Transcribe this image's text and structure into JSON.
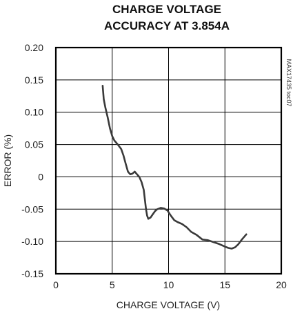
{
  "chart_data": {
    "type": "line",
    "title_lines": [
      "CHARGE VOLTAGE",
      "ACCURACY AT 3.854A"
    ],
    "xlabel": "CHARGE VOLTAGE (V)",
    "ylabel": "ERROR (%)",
    "side_label": "MAX17435 toc07",
    "xlim": [
      0,
      20
    ],
    "ylim": [
      -0.15,
      0.2
    ],
    "x_ticks": [
      0,
      5,
      10,
      15,
      20
    ],
    "x_tick_labels": [
      "0",
      "5",
      "10",
      "15",
      "20"
    ],
    "y_ticks": [
      0.2,
      0.15,
      0.1,
      0.05,
      0,
      -0.05,
      -0.1,
      -0.15
    ],
    "y_tick_labels": [
      "0.20",
      "0.15",
      "0.10",
      "0.05",
      "0",
      "-0.05",
      "-0.10",
      "-0.15"
    ],
    "grid": true,
    "series": [
      {
        "x": [
          4.15,
          4.25,
          4.4,
          4.6,
          4.8,
          5.0,
          5.2,
          5.5,
          5.8,
          6.0,
          6.2,
          6.4,
          6.6,
          6.8,
          7.0,
          7.2,
          7.4,
          7.6,
          7.8,
          8.0,
          8.1,
          8.2,
          8.4,
          8.6,
          8.8,
          9.0,
          9.3,
          9.6,
          9.9,
          10.2,
          10.5,
          10.8,
          11.2,
          11.6,
          12.0,
          12.5,
          13.0,
          13.5,
          14.0,
          14.5,
          15.0,
          15.3,
          15.6,
          15.9,
          16.2,
          16.5,
          16.9
        ],
        "y": [
          0.141,
          0.12,
          0.107,
          0.092,
          0.075,
          0.063,
          0.056,
          0.05,
          0.043,
          0.033,
          0.02,
          0.008,
          0.004,
          0.005,
          0.008,
          0.004,
          0.0,
          -0.008,
          -0.02,
          -0.05,
          -0.06,
          -0.065,
          -0.063,
          -0.058,
          -0.053,
          -0.05,
          -0.048,
          -0.049,
          -0.052,
          -0.06,
          -0.067,
          -0.07,
          -0.073,
          -0.078,
          -0.085,
          -0.09,
          -0.097,
          -0.098,
          -0.101,
          -0.104,
          -0.108,
          -0.11,
          -0.111,
          -0.109,
          -0.104,
          -0.097,
          -0.089
        ]
      }
    ]
  }
}
